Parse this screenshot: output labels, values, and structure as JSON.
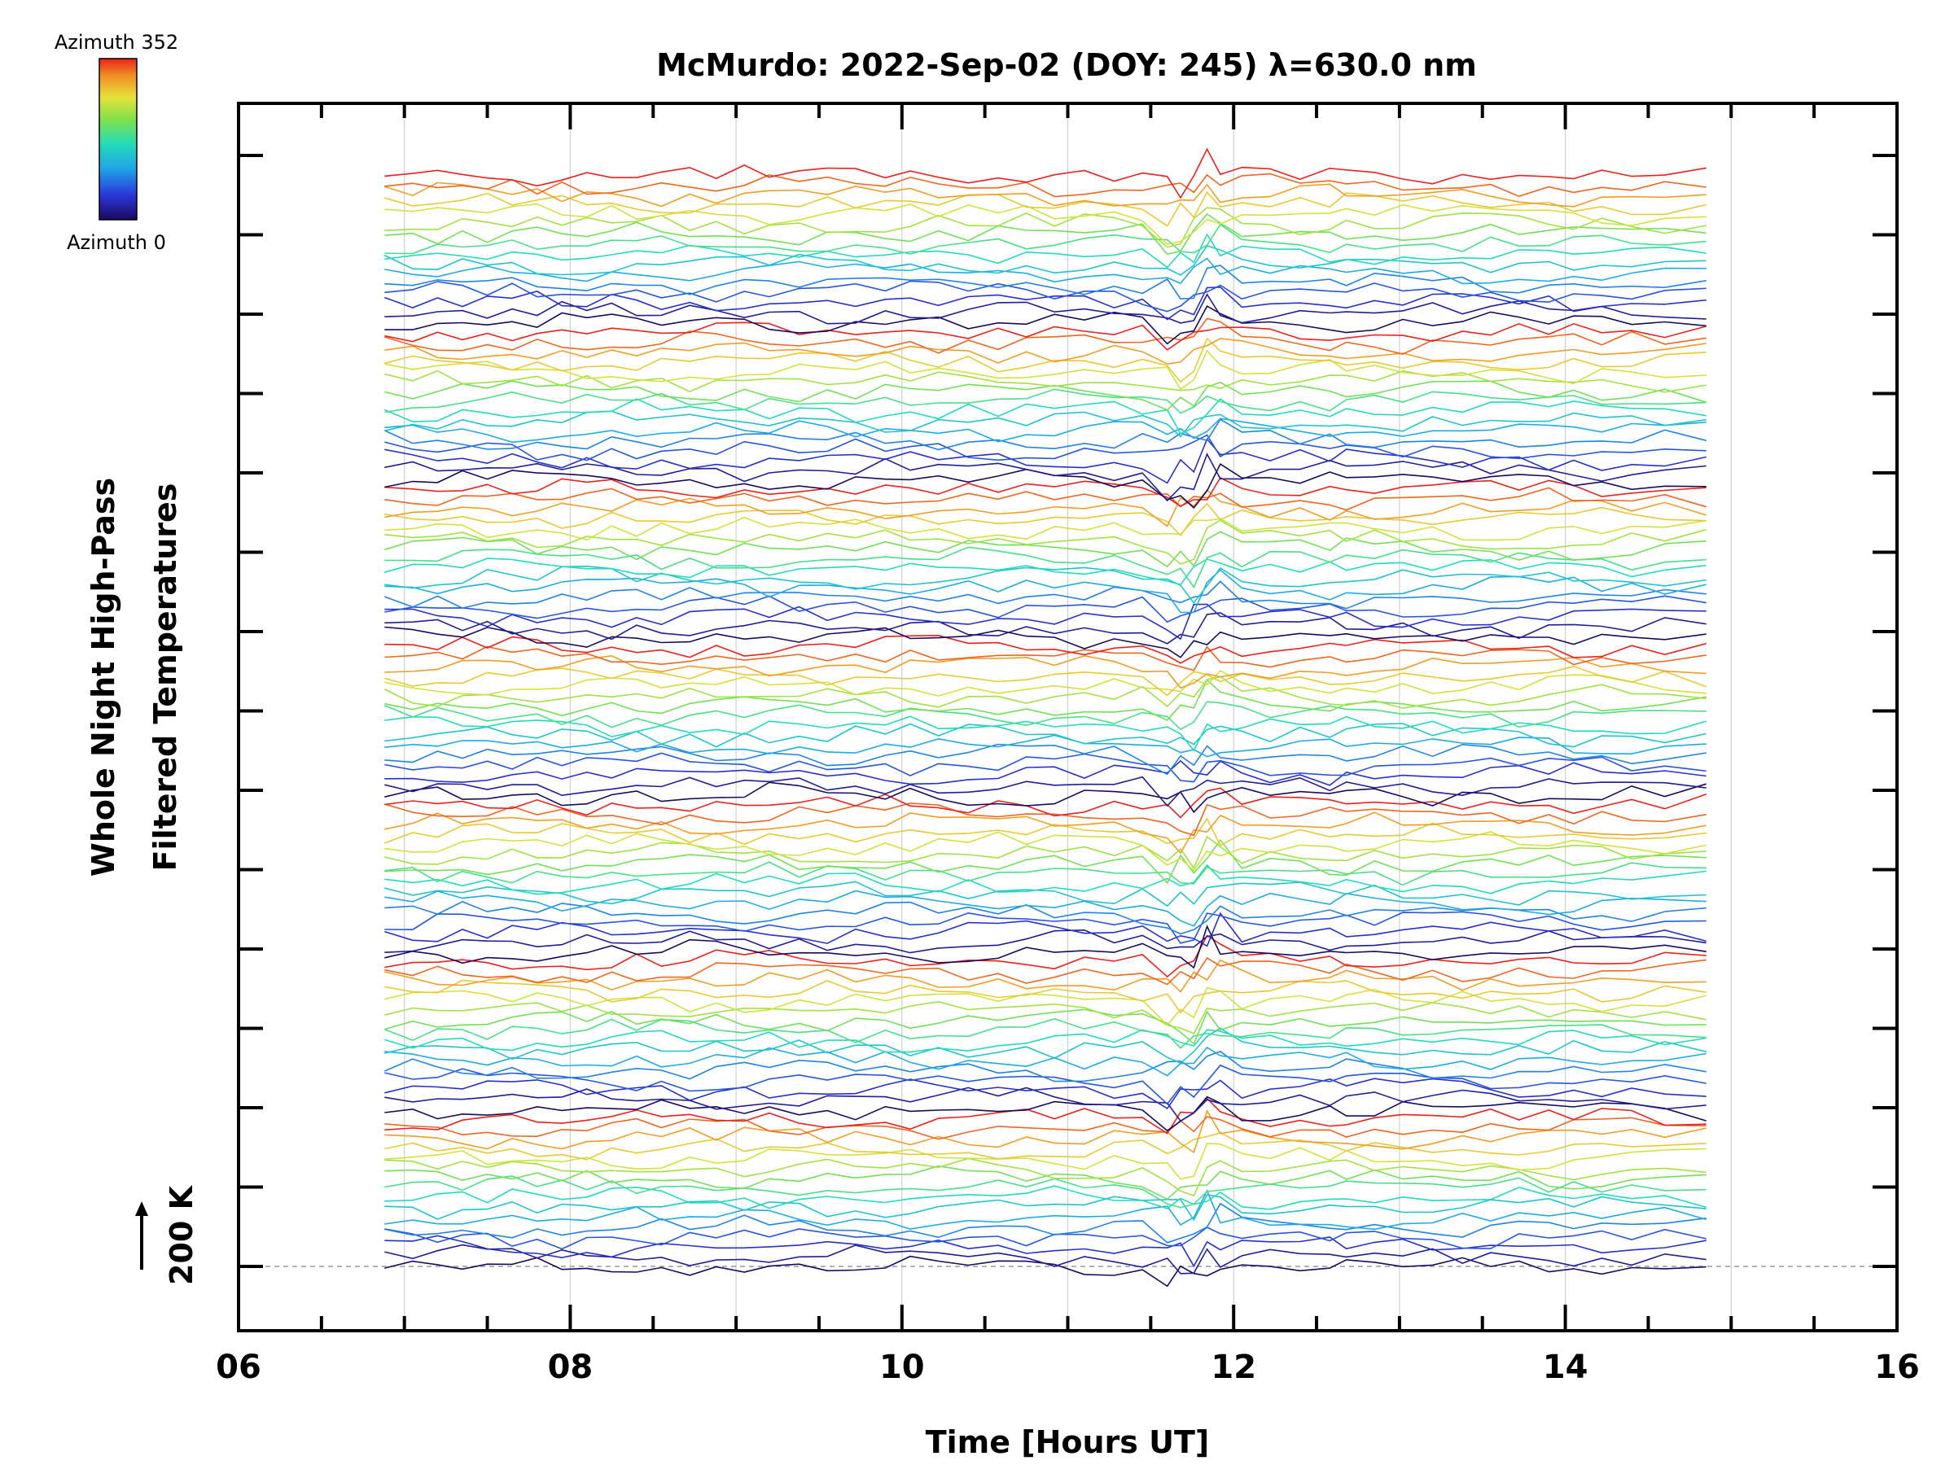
{
  "chart_data": {
    "type": "line",
    "title": "McMurdo: 2022-Sep-02 (DOY: 245) λ=630.0 nm",
    "xlabel": "Time [Hours UT]",
    "ylabel_line1": "Whole Night High-Pass",
    "ylabel_line2": "Filtered Temperatures",
    "xlim": [
      6,
      16
    ],
    "x_ticks": [
      "06",
      "08",
      "10",
      "12",
      "14",
      "16"
    ],
    "scale_label": "200 K",
    "colorbar": {
      "top_label": "Azimuth 352",
      "bottom_label": "Azimuth 0",
      "colormap": "rainbow"
    },
    "grid": "vertical dotted at each hour",
    "series_count": 112,
    "time_hours": [
      6.88,
      7.05,
      7.2,
      7.35,
      7.5,
      7.65,
      7.8,
      7.95,
      8.1,
      8.25,
      8.4,
      8.55,
      8.72,
      8.88,
      9.05,
      9.2,
      9.38,
      9.55,
      9.72,
      9.9,
      10.05,
      10.22,
      10.4,
      10.58,
      10.75,
      10.92,
      11.1,
      11.28,
      11.45,
      11.6,
      11.68,
      11.76,
      11.84,
      11.92,
      12.05,
      12.22,
      12.4,
      12.58,
      12.68,
      12.85,
      13.02,
      13.2,
      13.38,
      13.55,
      13.72,
      13.9,
      14.05,
      14.22,
      14.4,
      14.6,
      14.85
    ]
  },
  "colors": {
    "background": "#ffffff",
    "axis": "#000000",
    "grid": "#c8c8c8",
    "baseline": "#9a9a9a"
  }
}
